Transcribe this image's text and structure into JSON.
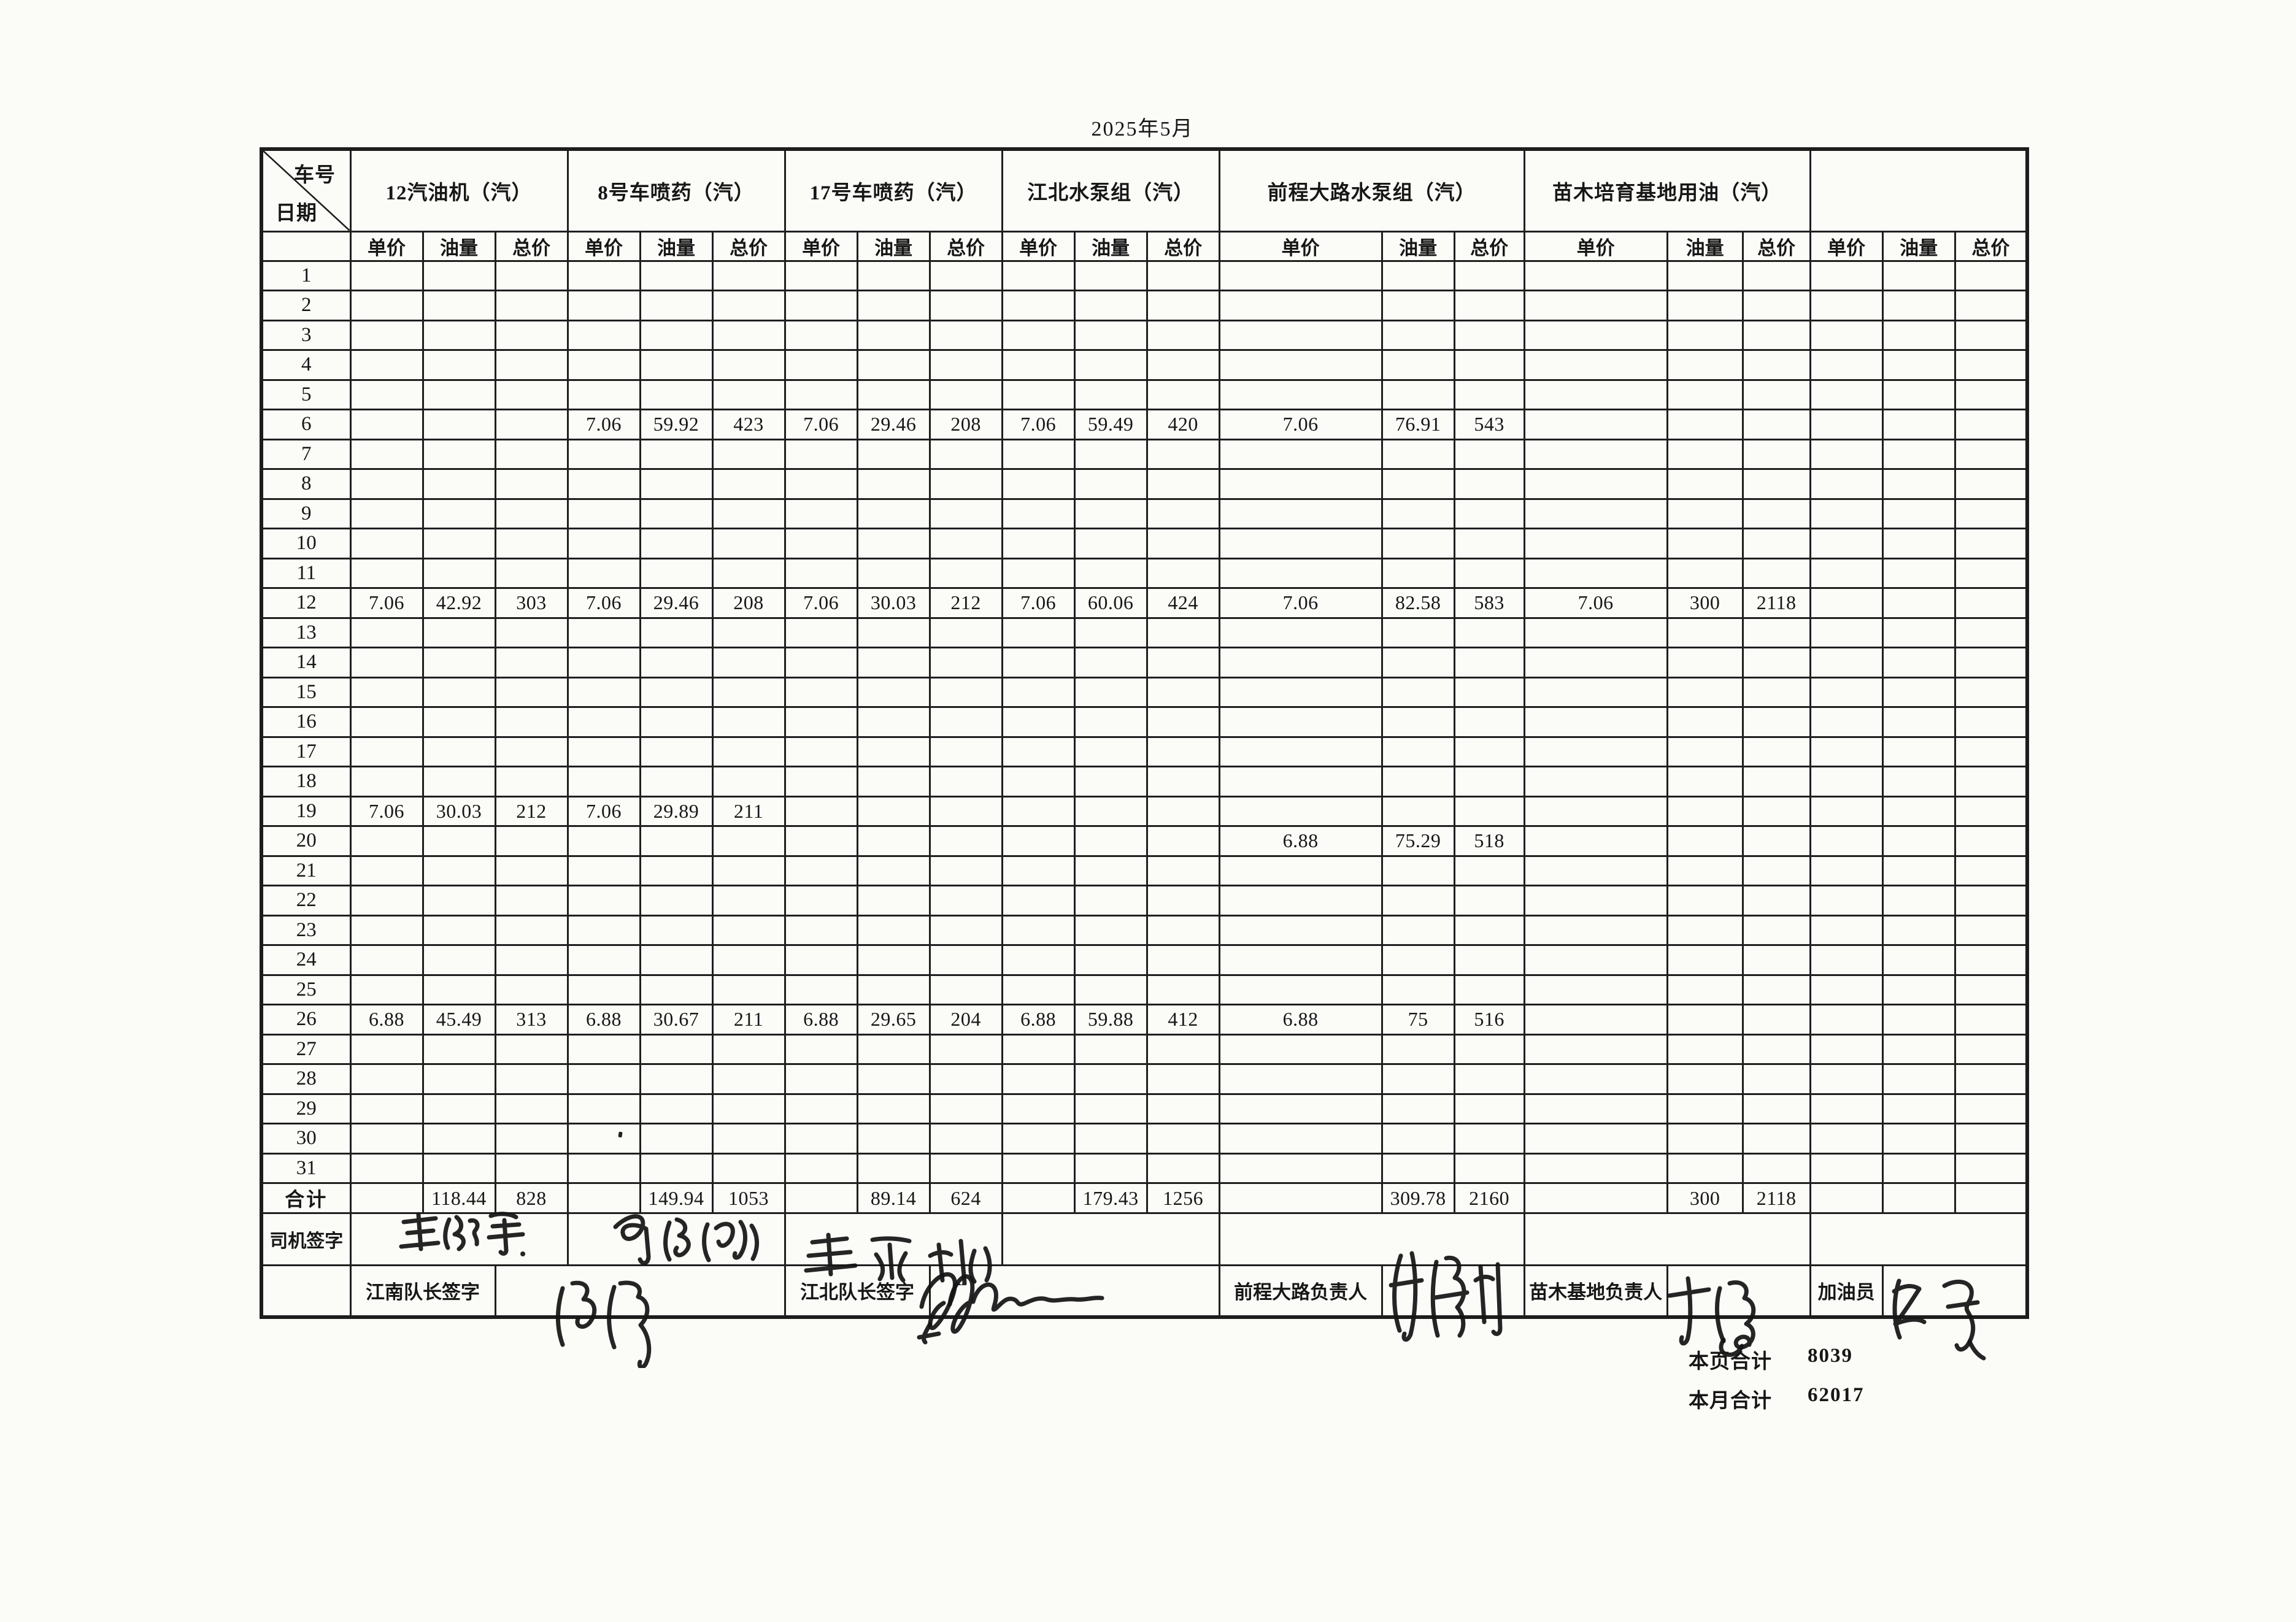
{
  "page": {
    "title": "2025年5月"
  },
  "table": {
    "corner": {
      "top": "车号",
      "bottom": "日期"
    },
    "groups": [
      {
        "title": "12汽油机（汽）"
      },
      {
        "title": "8号车喷药（汽）"
      },
      {
        "title": "17号车喷药（汽）"
      },
      {
        "title": "江北水泵组（汽）"
      },
      {
        "title": "前程大路水泵组（汽）"
      },
      {
        "title": "苗木培育基地用油（汽）"
      },
      {
        "title": ""
      }
    ],
    "sub_headers": [
      "单价",
      "油量",
      "总价"
    ],
    "rows": [
      {
        "day": "1",
        "cells": []
      },
      {
        "day": "2",
        "cells": []
      },
      {
        "day": "3",
        "cells": []
      },
      {
        "day": "4",
        "cells": []
      },
      {
        "day": "5",
        "cells": []
      },
      {
        "day": "6",
        "cells": [
          "",
          "",
          "",
          "7.06",
          "59.92",
          "423",
          "7.06",
          "29.46",
          "208",
          "7.06",
          "59.49",
          "420",
          "7.06",
          "76.91",
          "543",
          "",
          "",
          "",
          "",
          "",
          ""
        ]
      },
      {
        "day": "7",
        "cells": []
      },
      {
        "day": "8",
        "cells": []
      },
      {
        "day": "9",
        "cells": []
      },
      {
        "day": "10",
        "cells": []
      },
      {
        "day": "11",
        "cells": []
      },
      {
        "day": "12",
        "cells": [
          "7.06",
          "42.92",
          "303",
          "7.06",
          "29.46",
          "208",
          "7.06",
          "30.03",
          "212",
          "7.06",
          "60.06",
          "424",
          "7.06",
          "82.58",
          "583",
          "7.06",
          "300",
          "2118",
          "",
          "",
          ""
        ]
      },
      {
        "day": "13",
        "cells": []
      },
      {
        "day": "14",
        "cells": []
      },
      {
        "day": "15",
        "cells": []
      },
      {
        "day": "16",
        "cells": []
      },
      {
        "day": "17",
        "cells": []
      },
      {
        "day": "18",
        "cells": []
      },
      {
        "day": "19",
        "cells": [
          "7.06",
          "30.03",
          "212",
          "7.06",
          "29.89",
          "211",
          "",
          "",
          "",
          "",
          "",
          "",
          "",
          "",
          "",
          "",
          "",
          "",
          "",
          "",
          ""
        ]
      },
      {
        "day": "20",
        "cells": [
          "",
          "",
          "",
          "",
          "",
          "",
          "",
          "",
          "",
          "",
          "",
          "",
          "6.88",
          "75.29",
          "518",
          "",
          "",
          "",
          "",
          "",
          ""
        ]
      },
      {
        "day": "21",
        "cells": []
      },
      {
        "day": "22",
        "cells": []
      },
      {
        "day": "23",
        "cells": []
      },
      {
        "day": "24",
        "cells": []
      },
      {
        "day": "25",
        "cells": []
      },
      {
        "day": "26",
        "cells": [
          "6.88",
          "45.49",
          "313",
          "6.88",
          "30.67",
          "211",
          "6.88",
          "29.65",
          "204",
          "6.88",
          "59.88",
          "412",
          "6.88",
          "75",
          "516",
          "",
          "",
          "",
          "",
          "",
          ""
        ]
      },
      {
        "day": "27",
        "cells": []
      },
      {
        "day": "28",
        "cells": []
      },
      {
        "day": "29",
        "cells": []
      },
      {
        "day": "30",
        "cells": []
      },
      {
        "day": "31",
        "cells": []
      }
    ],
    "total_row": {
      "label": "合计",
      "cells": [
        "",
        "118.44",
        "828",
        "",
        "149.94",
        "1053",
        "",
        "89.14",
        "624",
        "",
        "179.43",
        "1256",
        "",
        "309.78",
        "2160",
        "",
        "300",
        "2118",
        "",
        "",
        ""
      ]
    },
    "driver_row_label": "司机签字",
    "footer_row": {
      "jiangnan_label": "江南队长签字",
      "jiangbei_label": "江北队长签字",
      "qiancheng_label": "前程大路负责人",
      "miaomu_label": "苗木基地负责人",
      "fueler_label": "加油员"
    }
  },
  "signatures": {
    "driver_1": "王绍军",
    "driver_2": "李饶波",
    "driver_3": "王东林",
    "jiangnan_captain": "陈庆",
    "jiangbei_captain": "（手写签名）",
    "qiancheng_manager": "（手写签名）",
    "miaomu_manager": "（手写签名）",
    "fueler": "（手写签名）"
  },
  "summary": {
    "page_total_label": "本页合计",
    "page_total": "8039",
    "month_total_label": "本月合计",
    "month_total": "62017"
  }
}
